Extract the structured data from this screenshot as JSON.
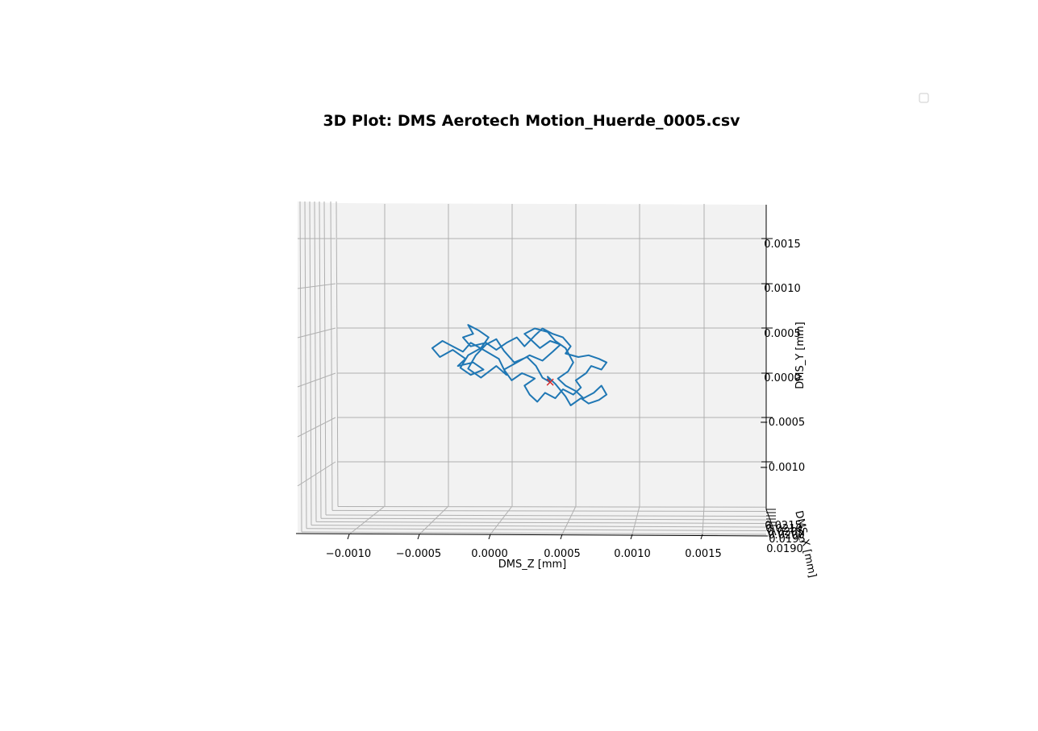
{
  "chart_data": {
    "type": "line",
    "projection": "3d",
    "title": "3D Plot: DMS Aerotech Motion_Huerde_0005.csv",
    "xlabel": "DMS_Z [mm]",
    "ylabel": "DMS_Y [mm]",
    "zlabel": "DMS_X [mm]",
    "z_ticks": [
      "−0.0010",
      "−0.0005",
      "0.0000",
      "0.0005",
      "0.0010",
      "0.0015"
    ],
    "z_tick_values": [
      -0.001,
      -0.0005,
      0.0,
      0.0005,
      0.001,
      0.0015
    ],
    "y_ticks": [
      "−0.0010",
      "−0.0005",
      "0.0000",
      "0.0005",
      "0.0010",
      "0.0015"
    ],
    "y_tick_values": [
      -0.001,
      -0.0005,
      0.0,
      0.0005,
      0.001,
      0.0015
    ],
    "x_ticks": [
      "0.0215",
      "0.0210",
      "0.0205",
      "0.0200",
      "0.0195",
      "0.0190"
    ],
    "grid": true,
    "legend": "top-right (empty)",
    "series_color": "#1f77b4",
    "marker_color": "#d62728",
    "marker": {
      "z": 0.00046,
      "y": -0.0001
    },
    "series": [
      {
        "points": [
          [
            0.00046,
            -0.0001
          ],
          [
            0.0004,
            -5e-05
          ],
          [
            0.00035,
            8e-05
          ],
          [
            0.00028,
            0.00018
          ],
          [
            0.00018,
            0.00012
          ],
          [
            0.0001,
            0.00025
          ],
          [
            4e-05,
            0.00038
          ],
          [
            -4e-05,
            0.00032
          ],
          [
            -0.00012,
            0.0002
          ],
          [
            -0.00018,
            5e-05
          ],
          [
            -8e-05,
            -5e-05
          ],
          [
            4e-05,
            8e-05
          ],
          [
            0.00012,
            -2e-05
          ],
          [
            6e-05,
            0.00016
          ],
          [
            -6e-05,
            0.00026
          ],
          [
            -0.00016,
            0.00034
          ],
          [
            -0.00022,
            0.00024
          ],
          [
            -0.0003,
            0.0003
          ],
          [
            -0.00038,
            0.00036
          ],
          [
            -0.00046,
            0.00028
          ],
          [
            -0.0004,
            0.00018
          ],
          [
            -0.0003,
            0.00026
          ],
          [
            -0.0002,
            0.00016
          ],
          [
            -0.00026,
            8e-05
          ],
          [
            -0.00014,
            0.00012
          ],
          [
            -6e-05,
            4e-05
          ],
          [
            -0.00016,
            -2e-05
          ],
          [
            -0.00024,
            6e-05
          ],
          [
            -0.00018,
            0.0002
          ],
          [
            -8e-05,
            0.00028
          ],
          [
            -2e-05,
            0.0004
          ],
          [
            -0.0001,
            0.00048
          ],
          [
            -0.00018,
            0.00054
          ],
          [
            -0.00014,
            0.00044
          ],
          [
            -0.00022,
            0.0004
          ],
          [
            -0.00016,
            0.0003
          ],
          [
            -4e-05,
            0.00034
          ],
          [
            4e-05,
            0.00026
          ],
          [
            0.00012,
            0.00034
          ],
          [
            0.0002,
            0.0004
          ],
          [
            0.00026,
            0.0003
          ],
          [
            0.00034,
            0.00042
          ],
          [
            0.0004,
            0.0005
          ],
          [
            0.00048,
            0.00044
          ],
          [
            0.00056,
            0.0004
          ],
          [
            0.00062,
            0.0003
          ],
          [
            0.00058,
            0.00022
          ],
          [
            0.00068,
            0.00018
          ],
          [
            0.00076,
            0.0002
          ],
          [
            0.00084,
            0.00016
          ],
          [
            0.0009,
            0.00012
          ],
          [
            0.00086,
            4e-05
          ],
          [
            0.00078,
            8e-05
          ],
          [
            0.00074,
            0.0
          ],
          [
            0.00066,
            -8e-05
          ],
          [
            0.0007,
            -0.00016
          ],
          [
            0.00064,
            -0.00024
          ],
          [
            0.00056,
            -0.00018
          ],
          [
            0.0005,
            -0.00028
          ],
          [
            0.00042,
            -0.00022
          ],
          [
            0.00036,
            -0.00032
          ],
          [
            0.0003,
            -0.00024
          ],
          [
            0.00026,
            -0.00014
          ],
          [
            0.00034,
            -6e-05
          ],
          [
            0.00024,
            0.0
          ],
          [
            0.00016,
            -8e-05
          ],
          [
            0.0001,
            4e-05
          ],
          [
            0.0002,
            0.00012
          ],
          [
            0.0003,
            0.0002
          ],
          [
            0.0004,
            0.00014
          ],
          [
            0.00048,
            0.00024
          ],
          [
            0.00054,
            0.00032
          ],
          [
            0.00046,
            0.00036
          ],
          [
            0.00038,
            0.00028
          ],
          [
            0.00032,
            0.00036
          ],
          [
            0.00026,
            0.00044
          ],
          [
            0.00034,
            0.0005
          ],
          [
            0.00044,
            0.00046
          ],
          [
            0.0005,
            0.00036
          ],
          [
            0.00058,
            0.00028
          ],
          [
            0.00064,
            0.00012
          ],
          [
            0.0006,
            2e-05
          ],
          [
            0.00052,
            -6e-05
          ],
          [
            0.00058,
            -0.00014
          ],
          [
            0.00066,
            -0.0002
          ],
          [
            0.00072,
            -0.00028
          ],
          [
            0.0008,
            -0.00022
          ],
          [
            0.00086,
            -0.00014
          ],
          [
            0.0009,
            -0.00024
          ],
          [
            0.00084,
            -0.0003
          ],
          [
            0.00076,
            -0.00034
          ],
          [
            0.0007,
            -0.00028
          ],
          [
            0.00062,
            -0.00036
          ],
          [
            0.00058,
            -0.00026
          ],
          [
            0.0005,
            -0.00012
          ],
          [
            0.00044,
            -4e-05
          ],
          [
            0.00046,
            -0.0001
          ]
        ]
      }
    ]
  }
}
